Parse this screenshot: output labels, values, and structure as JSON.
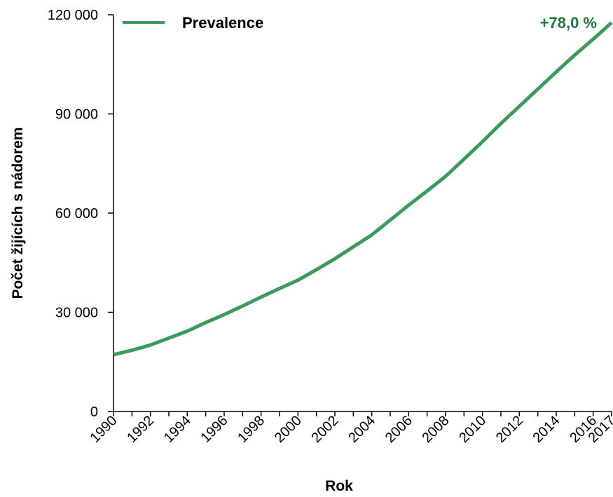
{
  "chart_data": {
    "type": "line",
    "xlabel": "Rok",
    "ylabel": "Počet žijících s nádorem",
    "ylim": [
      0,
      120000
    ],
    "xlim": [
      1990,
      2017
    ],
    "y_ticks": [
      {
        "value": 0,
        "label": "0"
      },
      {
        "value": 30000,
        "label": "30 000"
      },
      {
        "value": 60000,
        "label": "60 000"
      },
      {
        "value": 90000,
        "label": "90 000"
      },
      {
        "value": 120000,
        "label": "120 000"
      }
    ],
    "x_ticks": [
      "1990",
      "1992",
      "1994",
      "1996",
      "1998",
      "2000",
      "2002",
      "2004",
      "2006",
      "2008",
      "2010",
      "2012",
      "2014",
      "2016",
      "2017"
    ],
    "grid": false,
    "legend_position": "top-left",
    "series": [
      {
        "name": "Prevalence",
        "color": "#3a9b5c",
        "x": [
          1990,
          1991,
          1992,
          1993,
          1994,
          1995,
          1996,
          1997,
          1998,
          1999,
          2000,
          2001,
          2002,
          2003,
          2004,
          2005,
          2006,
          2007,
          2008,
          2009,
          2010,
          2011,
          2012,
          2013,
          2014,
          2015,
          2016,
          2017
        ],
        "y": [
          17200,
          18500,
          20100,
          22200,
          24300,
          26900,
          29300,
          31900,
          34600,
          37200,
          39700,
          42900,
          46200,
          49800,
          53400,
          57900,
          62400,
          66700,
          71100,
          76300,
          81600,
          87100,
          92300,
          97500,
          102700,
          107800,
          112600,
          117600
        ]
      }
    ],
    "annotation": {
      "text": "+78,0 %",
      "color": "#1a7a3a"
    }
  }
}
